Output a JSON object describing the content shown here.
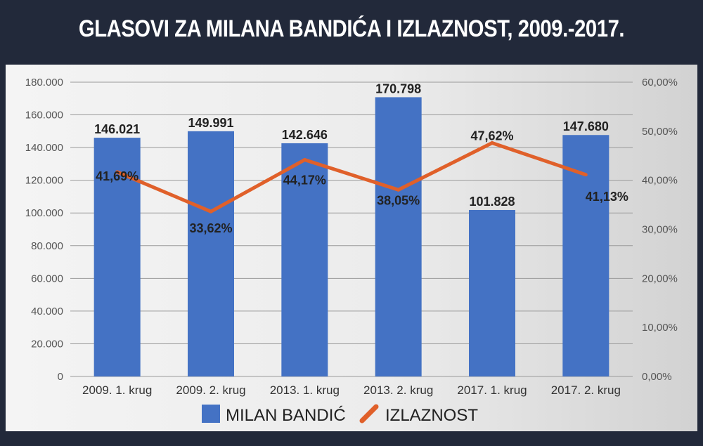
{
  "title": "GLASOVI ZA MILANA BANDIĆA I IZLAZNOST, 2009.-2017.",
  "colors": {
    "bar": "#4472c4",
    "line": "#e0602a",
    "background_dark": "#22293a"
  },
  "chart_data": {
    "type": "bar",
    "title": "GLASOVI ZA MILANA BANDIĆA I IZLAZNOST, 2009.-2017.",
    "categories": [
      "2009. 1. krug",
      "2009. 2. krug",
      "2013. 1. krug",
      "2013. 2. krug",
      "2017. 1. krug",
      "2017. 2. krug"
    ],
    "series": [
      {
        "name": "MILAN BANDIĆ",
        "type": "bar",
        "axis": "left",
        "values": [
          146021,
          149991,
          142646,
          170798,
          101828,
          147680
        ],
        "labels": [
          "146.021",
          "149.991",
          "142.646",
          "170.798",
          "101.828",
          "147.680"
        ]
      },
      {
        "name": "IZLAZNOST",
        "type": "line",
        "axis": "right",
        "values": [
          41.69,
          33.62,
          44.17,
          38.05,
          47.62,
          41.13
        ],
        "labels": [
          "41,69%",
          "33,62%",
          "44,17%",
          "38,05%",
          "47,62%",
          "41,13%"
        ]
      }
    ],
    "y_left": {
      "range": [
        0,
        180000
      ],
      "ticks": [
        "0",
        "20.000",
        "40.000",
        "60.000",
        "80.000",
        "100.000",
        "120.000",
        "140.000",
        "160.000",
        "180.000"
      ]
    },
    "y_right": {
      "range": [
        0,
        60
      ],
      "ticks": [
        "0,00%",
        "10,00%",
        "20,00%",
        "30,00%",
        "40,00%",
        "50,00%",
        "60,00%"
      ]
    },
    "grid": true,
    "legend": "bottom-center"
  }
}
